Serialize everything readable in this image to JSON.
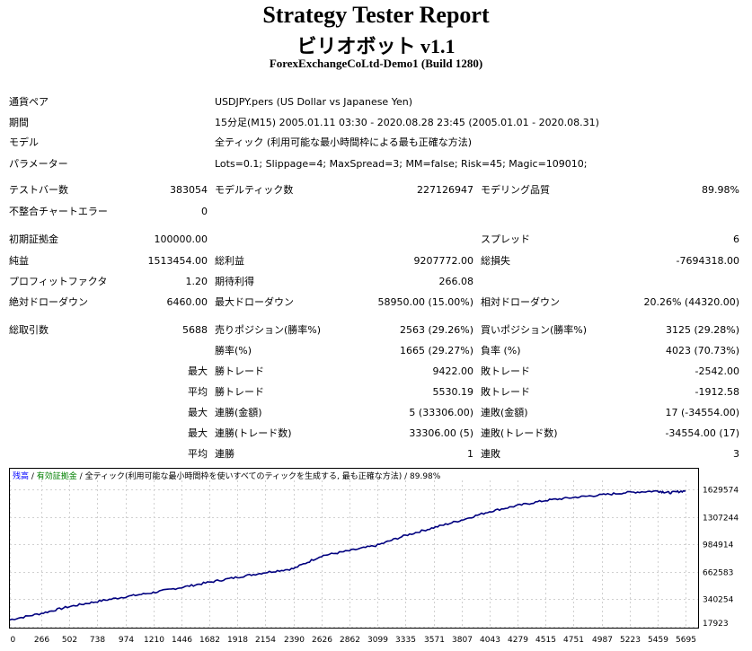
{
  "header": {
    "title": "Strategy Tester Report",
    "ea_name": "ビリオボット v1.1",
    "server": "ForexExchangeCoLtd-Demo1 (Build 1280)"
  },
  "settings": {
    "symbol_label": "通貨ペア",
    "symbol_value": "USDJPY.pers (US Dollar vs Japanese Yen)",
    "period_label": "期間",
    "period_value": "15分足(M15) 2005.01.11 03:30 - 2020.08.28 23:45 (2005.01.01 - 2020.08.31)",
    "model_label": "モデル",
    "model_value": "全ティック (利用可能な最小時間枠による最も正確な方法)",
    "params_label": "パラメーター",
    "params_value": "Lots=0.1; Slippage=4; MaxSpread=3; MM=false; Risk=45; Magic=109010;"
  },
  "stats": {
    "bars_label": "テストバー数",
    "bars_value": "383054",
    "ticks_label": "モデルティック数",
    "ticks_value": "227126947",
    "quality_label": "モデリング品質",
    "quality_value": "89.98%",
    "mismatch_label": "不整合チャートエラー",
    "mismatch_value": "0",
    "deposit_label": "初期証拠金",
    "deposit_value": "100000.00",
    "spread_label": "スプレッド",
    "spread_value": "6",
    "net_label": "純益",
    "net_value": "1513454.00",
    "gross_profit_label": "総利益",
    "gross_profit_value": "9207772.00",
    "gross_loss_label": "総損失",
    "gross_loss_value": "-7694318.00",
    "pf_label": "プロフィットファクタ",
    "pf_value": "1.20",
    "payoff_label": "期待利得",
    "payoff_value": "266.08",
    "abs_dd_label": "絶対ドローダウン",
    "abs_dd_value": "6460.00",
    "max_dd_label": "最大ドローダウン",
    "max_dd_value": "58950.00 (15.00%)",
    "rel_dd_label": "相対ドローダウン",
    "rel_dd_value": "20.26% (44320.00)",
    "trades_label": "総取引数",
    "trades_value": "5688",
    "short_label": "売りポジション(勝率%)",
    "short_value": "2563 (29.26%)",
    "long_label": "買いポジション(勝率%)",
    "long_value": "3125 (29.28%)",
    "win_label": "勝率(%)",
    "win_value": "1665 (29.27%)",
    "loss_label": "負率 (%)",
    "loss_value": "4023 (70.73%)",
    "max_word": "最大",
    "avg_word": "平均",
    "win_trade_label": "勝トレード",
    "loss_trade_label": "敗トレード",
    "largest_win": "9422.00",
    "largest_loss": "-2542.00",
    "average_win": "5530.19",
    "average_loss": "-1912.58",
    "cons_wins_money_label": "連勝(金額)",
    "cons_wins_money_value": "5 (33306.00)",
    "cons_losses_money_label": "連敗(金額)",
    "cons_losses_money_value": "17 (-34554.00)",
    "cons_profit_label": "連勝(トレード数)",
    "cons_profit_value": "33306.00 (5)",
    "cons_loss_label": "連敗(トレード数)",
    "cons_loss_value": "-34554.00 (17)",
    "avg_cons_wins_label": "連勝",
    "avg_cons_wins_value": "1",
    "avg_cons_losses_label": "連敗",
    "avg_cons_losses_value": "3"
  },
  "chart_legend": {
    "balance": "残高",
    "sep1": " / ",
    "volume": "有効証拠金",
    "sep2": " / ",
    "model_text": "全ティック(利用可能な最小時間枠を使いすべてのティックを生成する, 最も正確な方法)",
    "sep3": " / ",
    "quality": "89.98%"
  },
  "colors": {
    "balance_line": "#00007f",
    "legend_balance": "#0000ff",
    "legend_volume": "#008000"
  },
  "chart_data": {
    "type": "line",
    "x_ticks": [
      0,
      266,
      502,
      738,
      974,
      1210,
      1446,
      1682,
      1918,
      2154,
      2390,
      2626,
      2862,
      3099,
      3335,
      3571,
      3807,
      4043,
      4279,
      4515,
      4751,
      4987,
      5223,
      5459,
      5695
    ],
    "y_ticks": [
      17923,
      340254,
      662583,
      984914,
      1307244,
      1629574
    ],
    "xlim": [
      0,
      5800
    ],
    "ylim": [
      17923,
      1735000
    ],
    "series": [
      {
        "x": [
          0,
          266,
          502,
          738,
          974,
          1210,
          1446,
          1682,
          1918,
          2154,
          2390,
          2626,
          2862,
          3099,
          3335,
          3571,
          3807,
          4043,
          4279,
          4515,
          4751,
          4987,
          5223,
          5459,
          5560,
          5695
        ],
        "y": [
          100000,
          175000,
          255000,
          315000,
          370000,
          420000,
          480000,
          540000,
          600000,
          655000,
          700000,
          850000,
          910000,
          975000,
          1090000,
          1180000,
          1270000,
          1370000,
          1440000,
          1500000,
          1535000,
          1565000,
          1595000,
          1610000,
          1590000,
          1613000
        ]
      }
    ]
  }
}
